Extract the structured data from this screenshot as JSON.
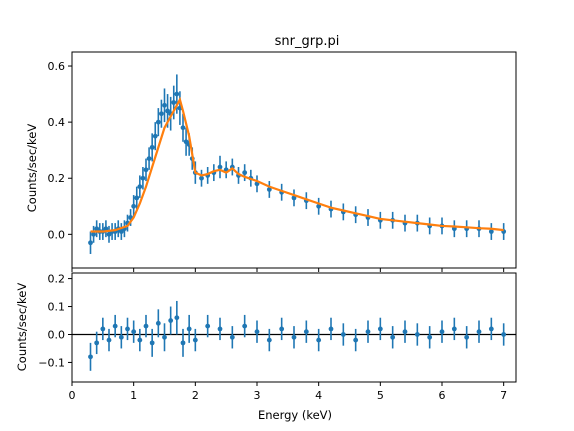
{
  "chart_data": [
    {
      "panel": "spectrum",
      "type": "scatter",
      "title": "snr_grp.pi",
      "xlabel": "",
      "ylabel": "Counts/sec/keV",
      "xlim": [
        0,
        7.2
      ],
      "ylim": [
        -0.12,
        0.65
      ],
      "xticks": [
        0,
        1,
        2,
        3,
        4,
        5,
        6,
        7
      ],
      "yticks": [
        0.0,
        0.2,
        0.4,
        0.6
      ],
      "ytick_labels": [
        "0.0",
        "0.2",
        "0.4",
        "0.6"
      ],
      "grid": false,
      "series": [
        {
          "role": "data",
          "color": "#1f77b4",
          "x": [
            0.3,
            0.35,
            0.4,
            0.45,
            0.5,
            0.55,
            0.6,
            0.65,
            0.7,
            0.75,
            0.8,
            0.85,
            0.9,
            0.95,
            1.0,
            1.05,
            1.1,
            1.15,
            1.2,
            1.25,
            1.3,
            1.35,
            1.4,
            1.45,
            1.5,
            1.55,
            1.6,
            1.65,
            1.7,
            1.75,
            1.8,
            1.85,
            1.9,
            1.95,
            2.0,
            2.1,
            2.2,
            2.3,
            2.4,
            2.5,
            2.6,
            2.7,
            2.8,
            2.9,
            3.0,
            3.2,
            3.4,
            3.6,
            3.8,
            4.0,
            4.2,
            4.4,
            4.6,
            4.8,
            5.0,
            5.2,
            5.4,
            5.6,
            5.8,
            6.0,
            6.2,
            6.4,
            6.6,
            6.8,
            7.0
          ],
          "y": [
            -0.03,
            0.0,
            0.02,
            0.01,
            0.01,
            0.02,
            0.0,
            0.01,
            0.01,
            0.02,
            0.01,
            0.02,
            0.04,
            0.06,
            0.1,
            0.13,
            0.17,
            0.2,
            0.23,
            0.27,
            0.31,
            0.35,
            0.4,
            0.43,
            0.46,
            0.44,
            0.43,
            0.47,
            0.5,
            0.45,
            0.38,
            0.33,
            0.32,
            0.27,
            0.22,
            0.2,
            0.21,
            0.22,
            0.24,
            0.23,
            0.24,
            0.21,
            0.22,
            0.2,
            0.18,
            0.16,
            0.15,
            0.13,
            0.12,
            0.1,
            0.09,
            0.08,
            0.07,
            0.06,
            0.05,
            0.05,
            0.04,
            0.04,
            0.03,
            0.03,
            0.02,
            0.02,
            0.02,
            0.01,
            0.01
          ],
          "yerr": [
            0.04,
            0.03,
            0.03,
            0.03,
            0.03,
            0.03,
            0.03,
            0.03,
            0.03,
            0.03,
            0.03,
            0.03,
            0.03,
            0.03,
            0.04,
            0.04,
            0.04,
            0.04,
            0.04,
            0.04,
            0.05,
            0.05,
            0.05,
            0.05,
            0.06,
            0.06,
            0.06,
            0.06,
            0.07,
            0.06,
            0.05,
            0.05,
            0.04,
            0.04,
            0.04,
            0.03,
            0.03,
            0.03,
            0.04,
            0.03,
            0.03,
            0.03,
            0.03,
            0.03,
            0.03,
            0.03,
            0.03,
            0.03,
            0.03,
            0.03,
            0.03,
            0.03,
            0.03,
            0.03,
            0.03,
            0.03,
            0.03,
            0.03,
            0.03,
            0.03,
            0.03,
            0.03,
            0.03,
            0.03,
            0.03
          ]
        },
        {
          "role": "model",
          "color": "#ff7f0e",
          "x": [
            0.3,
            0.5,
            0.7,
            0.9,
            1.0,
            1.1,
            1.2,
            1.3,
            1.4,
            1.5,
            1.6,
            1.7,
            1.75,
            1.8,
            1.9,
            2.0,
            2.1,
            2.2,
            2.3,
            2.4,
            2.5,
            2.6,
            2.7,
            2.8,
            3.0,
            3.2,
            3.4,
            3.6,
            3.8,
            4.0,
            4.2,
            4.4,
            4.6,
            4.8,
            5.0,
            5.2,
            5.4,
            5.6,
            5.8,
            6.0,
            6.2,
            6.4,
            6.6,
            6.8,
            7.0
          ],
          "y": [
            0.01,
            0.01,
            0.015,
            0.03,
            0.06,
            0.11,
            0.17,
            0.24,
            0.31,
            0.38,
            0.42,
            0.46,
            0.48,
            0.44,
            0.35,
            0.22,
            0.21,
            0.215,
            0.225,
            0.23,
            0.22,
            0.235,
            0.215,
            0.205,
            0.19,
            0.17,
            0.155,
            0.14,
            0.125,
            0.11,
            0.095,
            0.085,
            0.075,
            0.065,
            0.055,
            0.05,
            0.045,
            0.04,
            0.035,
            0.03,
            0.028,
            0.025,
            0.022,
            0.02,
            0.015
          ]
        }
      ]
    },
    {
      "panel": "residuals",
      "type": "scatter",
      "title": "",
      "xlabel": "Energy (keV)",
      "ylabel": "Counts/sec/keV",
      "xlim": [
        0,
        7.2
      ],
      "ylim": [
        -0.17,
        0.22
      ],
      "xticks": [
        0,
        1,
        2,
        3,
        4,
        5,
        6,
        7
      ],
      "xtick_labels": [
        "0",
        "1",
        "2",
        "3",
        "4",
        "5",
        "6",
        "7"
      ],
      "yticks": [
        -0.1,
        0.0,
        0.1,
        0.2
      ],
      "ytick_labels": [
        "−0.1",
        "0.0",
        "0.1",
        "0.2"
      ],
      "grid": false,
      "reference_line_y": 0.0,
      "series": [
        {
          "role": "data",
          "color": "#1f77b4",
          "x": [
            0.3,
            0.4,
            0.5,
            0.6,
            0.7,
            0.8,
            0.9,
            1.0,
            1.1,
            1.2,
            1.3,
            1.4,
            1.5,
            1.6,
            1.7,
            1.8,
            1.9,
            2.0,
            2.2,
            2.4,
            2.6,
            2.8,
            3.0,
            3.2,
            3.4,
            3.6,
            3.8,
            4.0,
            4.2,
            4.4,
            4.6,
            4.8,
            5.0,
            5.2,
            5.4,
            5.6,
            5.8,
            6.0,
            6.2,
            6.4,
            6.6,
            6.8,
            7.0
          ],
          "y": [
            -0.08,
            -0.03,
            0.02,
            -0.02,
            0.03,
            -0.01,
            0.02,
            0.01,
            -0.02,
            0.03,
            -0.03,
            0.04,
            -0.01,
            0.05,
            0.06,
            -0.03,
            0.02,
            -0.02,
            0.03,
            0.02,
            -0.01,
            0.03,
            0.01,
            -0.02,
            0.02,
            -0.01,
            0.01,
            -0.02,
            0.02,
            0.0,
            -0.02,
            0.01,
            0.02,
            -0.01,
            0.01,
            0.0,
            -0.01,
            0.01,
            0.02,
            -0.01,
            0.01,
            0.02,
            0.0
          ],
          "yerr": [
            0.05,
            0.04,
            0.04,
            0.04,
            0.04,
            0.04,
            0.04,
            0.04,
            0.04,
            0.04,
            0.05,
            0.05,
            0.05,
            0.05,
            0.06,
            0.05,
            0.05,
            0.04,
            0.04,
            0.04,
            0.04,
            0.04,
            0.04,
            0.04,
            0.04,
            0.04,
            0.04,
            0.04,
            0.04,
            0.04,
            0.04,
            0.04,
            0.04,
            0.04,
            0.04,
            0.04,
            0.04,
            0.04,
            0.04,
            0.04,
            0.04,
            0.04,
            0.04
          ]
        }
      ]
    }
  ]
}
